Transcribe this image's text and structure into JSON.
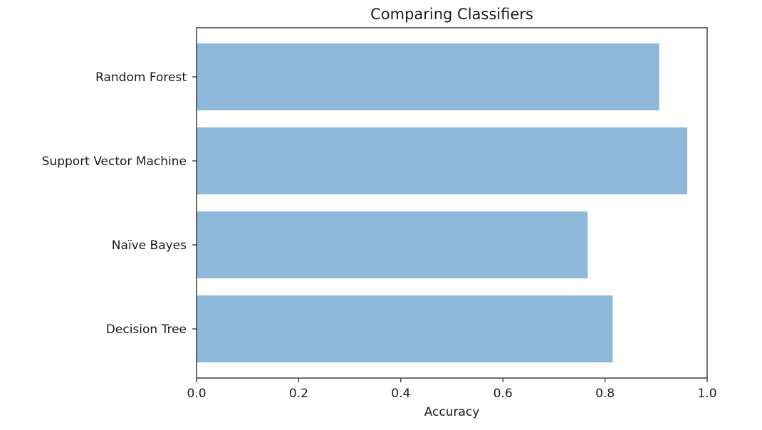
{
  "chart_data": {
    "type": "bar",
    "orientation": "horizontal",
    "title": "Comparing Classifiers",
    "xlabel": "Accuracy",
    "ylabel": "",
    "categories": [
      "Random Forest",
      "Support Vector Machine",
      "Naïve Bayes",
      "Decision Tree"
    ],
    "values": [
      0.906,
      0.961,
      0.766,
      0.815
    ],
    "xlim": [
      0.0,
      1.0
    ],
    "xticks": [
      0.0,
      0.2,
      0.4,
      0.6,
      0.8,
      1.0
    ],
    "xtick_labels": [
      "0.0",
      "0.2",
      "0.4",
      "0.6",
      "0.8",
      "1.0"
    ],
    "bar_color": "#8db8d9",
    "grid": false,
    "legend": "none"
  }
}
